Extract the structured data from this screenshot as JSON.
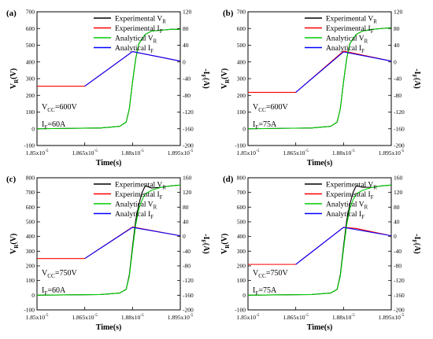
{
  "chart_data": [
    {
      "type": "line",
      "panel_label": "(a)",
      "xlabel": "Time(s)",
      "ylabel_left": "V_R(V)",
      "ylabel_right": "-I_F(A)",
      "x_ticks": [
        "1.85x10^-5",
        "1.865x10^-5",
        "1.88x10^-5",
        "1.895x10^-5"
      ],
      "x_tick_values": [
        1.85e-05,
        1.865e-05,
        1.88e-05,
        1.895e-05
      ],
      "xlim": [
        1.85e-05,
        1.895e-05
      ],
      "ylim_left": [
        -100,
        700
      ],
      "ylim_right": [
        -200,
        120
      ],
      "y_ticks_left": [
        -100,
        0,
        100,
        200,
        300,
        400,
        500,
        600,
        700
      ],
      "y_ticks_right": [
        -200,
        -160,
        -120,
        -80,
        -40,
        0,
        40,
        80,
        120
      ],
      "legend": [
        "Experimental V_R",
        "Experimental I_F",
        "Analytical V_R",
        "Analytical I_F"
      ],
      "annotations": [
        "V_CC=600V",
        "I_F=60A"
      ],
      "series": [
        {
          "name": "Experimental V_R",
          "color": "#000000",
          "axis": "left",
          "x": [
            1.85e-05,
            1.87e-05,
            1.876e-05,
            1.878e-05,
            1.879e-05,
            1.88e-05,
            1.881e-05,
            1.882e-05,
            1.884e-05,
            1.886e-05,
            1.889e-05,
            1.892e-05,
            1.895e-05
          ],
          "y": [
            0,
            5,
            15,
            40,
            120,
            280,
            420,
            510,
            565,
            585,
            590,
            595,
            595
          ]
        },
        {
          "name": "Experimental I_F",
          "color": "#ff0000",
          "axis": "left",
          "x": [
            1.85e-05,
            1.865e-05,
            1.88e-05,
            1.895e-05
          ],
          "y": [
            255,
            255,
            462,
            405
          ]
        },
        {
          "name": "Analytical V_R",
          "color": "#00cc00",
          "axis": "left",
          "x": [
            1.85e-05,
            1.87e-05,
            1.876e-05,
            1.878e-05,
            1.879e-05,
            1.88e-05,
            1.881e-05,
            1.882e-05,
            1.884e-05,
            1.886e-05,
            1.889e-05,
            1.892e-05,
            1.895e-05
          ],
          "y": [
            0,
            5,
            15,
            40,
            120,
            280,
            420,
            510,
            565,
            585,
            590,
            595,
            595
          ]
        },
        {
          "name": "Analytical I_F",
          "color": "#0000ff",
          "axis": "left",
          "x": [
            1.865e-05,
            1.88e-05,
            1.895e-05
          ],
          "y": [
            255,
            462,
            405
          ]
        }
      ]
    },
    {
      "type": "line",
      "panel_label": "(b)",
      "xlabel": "Time(s)",
      "ylabel_left": "V_R(V)",
      "ylabel_right": "-I_F(A)",
      "x_ticks": [
        "1.85x10^-5",
        "1.865x10^-5",
        "1.88x10^-5",
        "1.895x10^-5"
      ],
      "x_tick_values": [
        1.85e-05,
        1.865e-05,
        1.88e-05,
        1.895e-05
      ],
      "xlim": [
        1.85e-05,
        1.895e-05
      ],
      "ylim_left": [
        -100,
        700
      ],
      "ylim_right": [
        -200,
        120
      ],
      "y_ticks_left": [
        -100,
        0,
        100,
        200,
        300,
        400,
        500,
        600,
        700
      ],
      "y_ticks_right": [
        -200,
        -160,
        -120,
        -80,
        -40,
        0,
        40,
        80,
        120
      ],
      "legend": [
        "Experimental V_R",
        "Experimental I_F",
        "Analytical V_R",
        "Analytical I_F"
      ],
      "annotations": [
        "V_CC=600V",
        "I_F=75A"
      ],
      "series": [
        {
          "name": "Experimental V_R",
          "color": "#000000",
          "axis": "left",
          "x": [
            1.85e-05,
            1.87e-05,
            1.876e-05,
            1.878e-05,
            1.879e-05,
            1.88e-05,
            1.881e-05,
            1.882e-05,
            1.884e-05,
            1.886e-05,
            1.889e-05,
            1.892e-05,
            1.895e-05
          ],
          "y": [
            0,
            5,
            15,
            40,
            120,
            280,
            420,
            510,
            565,
            585,
            595,
            600,
            605
          ]
        },
        {
          "name": "Experimental I_F",
          "color": "#ff0000",
          "axis": "left",
          "x": [
            1.85e-05,
            1.865e-05,
            1.88e-05,
            1.895e-05
          ],
          "y": [
            218,
            218,
            465,
            405
          ]
        },
        {
          "name": "Analytical V_R",
          "color": "#00cc00",
          "axis": "left",
          "x": [
            1.85e-05,
            1.87e-05,
            1.876e-05,
            1.878e-05,
            1.879e-05,
            1.88e-05,
            1.881e-05,
            1.882e-05,
            1.884e-05,
            1.886e-05,
            1.889e-05,
            1.892e-05,
            1.895e-05
          ],
          "y": [
            0,
            5,
            15,
            40,
            120,
            280,
            420,
            510,
            565,
            585,
            595,
            600,
            605
          ]
        },
        {
          "name": "Analytical I_F",
          "color": "#0000ff",
          "axis": "left",
          "x": [
            1.865e-05,
            1.88e-05,
            1.895e-05
          ],
          "y": [
            218,
            460,
            405
          ]
        }
      ]
    },
    {
      "type": "line",
      "panel_label": "(c)",
      "xlabel": "Time(s)",
      "ylabel_left": "V_R(V)",
      "ylabel_right": "-I_F(A)",
      "x_ticks": [
        "1.85x10^-5",
        "1.865x10^-5",
        "1.88x10^-5",
        "1.895x10^-5"
      ],
      "x_tick_values": [
        1.85e-05,
        1.865e-05,
        1.88e-05,
        1.895e-05
      ],
      "xlim": [
        1.85e-05,
        1.895e-05
      ],
      "ylim_left": [
        -100,
        800
      ],
      "ylim_right": [
        -200,
        160
      ],
      "y_ticks_left": [
        -100,
        0,
        100,
        200,
        300,
        400,
        500,
        600,
        700,
        800
      ],
      "y_ticks_right": [
        -200,
        -160,
        -120,
        -80,
        -40,
        0,
        40,
        80,
        120,
        160
      ],
      "legend": [
        "Experimental V_R",
        "Experimental I_F",
        "Analytical V_R",
        "Analytical I_F"
      ],
      "annotations": [
        "V_CC=750V",
        "I_F=60A"
      ],
      "series": [
        {
          "name": "Experimental V_R",
          "color": "#000000",
          "axis": "left",
          "x": [
            1.85e-05,
            1.87e-05,
            1.876e-05,
            1.878e-05,
            1.879e-05,
            1.88e-05,
            1.881e-05,
            1.882e-05,
            1.883e-05,
            1.884e-05,
            1.886e-05,
            1.889e-05,
            1.892e-05,
            1.895e-05
          ],
          "y": [
            0,
            5,
            15,
            40,
            140,
            330,
            510,
            620,
            700,
            745,
            730,
            735,
            745,
            750
          ]
        },
        {
          "name": "Experimental I_F",
          "color": "#ff0000",
          "axis": "left",
          "x": [
            1.85e-05,
            1.865e-05,
            1.88e-05,
            1.895e-05
          ],
          "y": [
            250,
            250,
            465,
            405
          ]
        },
        {
          "name": "Analytical V_R",
          "color": "#00cc00",
          "axis": "left",
          "x": [
            1.85e-05,
            1.87e-05,
            1.876e-05,
            1.878e-05,
            1.879e-05,
            1.88e-05,
            1.881e-05,
            1.882e-05,
            1.883e-05,
            1.884e-05,
            1.886e-05,
            1.889e-05,
            1.892e-05,
            1.895e-05
          ],
          "y": [
            0,
            5,
            15,
            40,
            130,
            310,
            480,
            590,
            650,
            690,
            715,
            735,
            745,
            750
          ]
        },
        {
          "name": "Analytical I_F",
          "color": "#0000ff",
          "axis": "left",
          "x": [
            1.865e-05,
            1.88e-05,
            1.895e-05
          ],
          "y": [
            250,
            462,
            405
          ]
        }
      ]
    },
    {
      "type": "line",
      "panel_label": "(d)",
      "xlabel": "Time(s)",
      "ylabel_left": "V_R(V)",
      "ylabel_right": "-I_F(A)",
      "x_ticks": [
        "1.85x10^-5",
        "1.865x10^-5",
        "1.88x10^-5",
        "1.895x10^-5"
      ],
      "x_tick_values": [
        1.85e-05,
        1.865e-05,
        1.88e-05,
        1.895e-05
      ],
      "xlim": [
        1.85e-05,
        1.895e-05
      ],
      "ylim_left": [
        -100,
        800
      ],
      "ylim_right": [
        -200,
        160
      ],
      "y_ticks_left": [
        -100,
        0,
        100,
        200,
        300,
        400,
        500,
        600,
        700,
        800
      ],
      "y_ticks_right": [
        -200,
        -160,
        -120,
        -80,
        -40,
        0,
        40,
        80,
        120,
        160
      ],
      "legend": [
        "Experimental V_R",
        "Experimental I_F",
        "Analytical V_R",
        "Analytical I_F"
      ],
      "annotations": [
        "V_CC=750V",
        "I_F=75A"
      ],
      "series": [
        {
          "name": "Experimental V_R",
          "color": "#000000",
          "axis": "left",
          "x": [
            1.85e-05,
            1.87e-05,
            1.876e-05,
            1.878e-05,
            1.879e-05,
            1.88e-05,
            1.881e-05,
            1.882e-05,
            1.883e-05,
            1.884e-05,
            1.886e-05,
            1.889e-05,
            1.892e-05,
            1.895e-05
          ],
          "y": [
            0,
            5,
            15,
            40,
            140,
            330,
            510,
            620,
            700,
            745,
            735,
            735,
            745,
            750
          ]
        },
        {
          "name": "Experimental I_F",
          "color": "#ff0000",
          "axis": "left",
          "x": [
            1.85e-05,
            1.865e-05,
            1.88e-05,
            1.884e-05,
            1.895e-05
          ],
          "y": [
            210,
            210,
            462,
            455,
            405
          ]
        },
        {
          "name": "Analytical V_R",
          "color": "#00cc00",
          "axis": "left",
          "x": [
            1.85e-05,
            1.87e-05,
            1.876e-05,
            1.878e-05,
            1.879e-05,
            1.88e-05,
            1.881e-05,
            1.882e-05,
            1.883e-05,
            1.884e-05,
            1.886e-05,
            1.889e-05,
            1.892e-05,
            1.895e-05
          ],
          "y": [
            0,
            5,
            15,
            40,
            130,
            310,
            480,
            590,
            650,
            690,
            715,
            735,
            745,
            750
          ]
        },
        {
          "name": "Analytical I_F",
          "color": "#0000ff",
          "axis": "left",
          "x": [
            1.865e-05,
            1.88e-05,
            1.895e-05
          ],
          "y": [
            210,
            462,
            405
          ]
        }
      ]
    }
  ]
}
